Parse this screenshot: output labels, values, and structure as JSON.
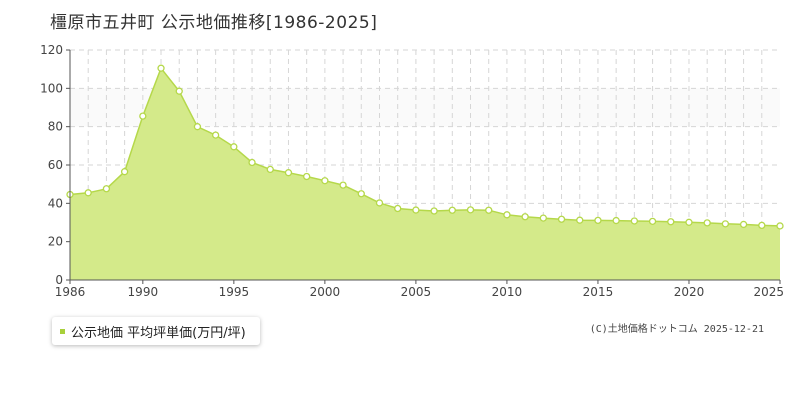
{
  "title": "橿原市五井町 公示地価推移[1986-2025]",
  "legend": {
    "label": "公示地価 平均坪単価(万円/坪)"
  },
  "credit": "(C)土地価格ドットコム 2025-12-21",
  "colors": {
    "fill": "#d4ea8a",
    "line": "#b5d84a",
    "marker_fill": "#ffffff",
    "marker_stroke": "#b5d84a",
    "legend_swatch": "#a8d03a",
    "grid": "#d6d6d6",
    "plot_band": "#fafafa"
  },
  "chart_data": {
    "type": "area",
    "title": "橿原市五井町 公示地価推移[1986-2025]",
    "xlabel": "",
    "ylabel": "",
    "xlim": [
      1986,
      2025
    ],
    "ylim": [
      0,
      120
    ],
    "yticks": [
      0,
      20,
      40,
      60,
      80,
      100,
      120
    ],
    "xticks": [
      1986,
      1990,
      1995,
      2000,
      2005,
      2010,
      2015,
      2020,
      2025
    ],
    "grid": true,
    "legend_position": "bottom-left",
    "series": [
      {
        "name": "公示地価 平均坪単価(万円/坪)",
        "x": [
          1986,
          1987,
          1988,
          1989,
          1990,
          1991,
          1992,
          1993,
          1994,
          1995,
          1996,
          1997,
          1998,
          1999,
          2000,
          2001,
          2002,
          2003,
          2004,
          2005,
          2006,
          2007,
          2008,
          2009,
          2010,
          2011,
          2012,
          2013,
          2014,
          2015,
          2016,
          2017,
          2018,
          2019,
          2020,
          2021,
          2022,
          2023,
          2024,
          2025
        ],
        "values": [
          44.6,
          45.5,
          47.6,
          56.5,
          85.5,
          110.5,
          98.5,
          80.0,
          75.6,
          69.5,
          61.3,
          57.7,
          56.0,
          54.0,
          51.8,
          49.5,
          45.0,
          40.2,
          37.3,
          36.5,
          36.0,
          36.4,
          36.6,
          36.4,
          34.0,
          33.0,
          32.3,
          31.7,
          31.2,
          31.1,
          31.0,
          30.8,
          30.6,
          30.4,
          30.1,
          29.8,
          29.3,
          29.0,
          28.5,
          28.2
        ]
      }
    ]
  }
}
